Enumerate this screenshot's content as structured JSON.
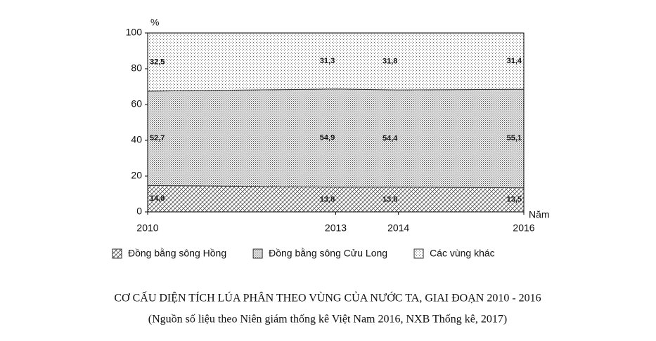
{
  "chart_data": {
    "type": "stacked-area",
    "title": "CƠ CẤU DIỆN TÍCH LÚA PHÂN THEO VÙNG CỦA NƯỚC TA, GIAI ĐOẠN 2010 - 2016",
    "subtitle": "(Nguồn số liệu theo Niên giám thống kê Việt Nam 2016, NXB Thống kê, 2017)",
    "y_label": "%",
    "x_label": "Năm",
    "x": [
      2010,
      2013,
      2014,
      2016
    ],
    "xlim": [
      2010,
      2016
    ],
    "xticks": [
      2010,
      2013,
      2014,
      2016
    ],
    "ylim": [
      0,
      100
    ],
    "yticks": [
      0,
      20,
      40,
      60,
      80,
      100
    ],
    "series": [
      {
        "name": "Đồng bằng sông Hồng",
        "pattern": "hatch",
        "color": "#333333",
        "values": [
          14.8,
          13.8,
          13.8,
          13.5
        ],
        "value_labels": [
          "14,8",
          "13,8",
          "13,8",
          "13,5"
        ]
      },
      {
        "name": "Đồng bằng sông Cửu Long",
        "pattern": "dense-dots",
        "color": "#333333",
        "values": [
          52.7,
          54.9,
          54.4,
          55.1
        ],
        "value_labels": [
          "52,7",
          "54,9",
          "54,4",
          "55,1"
        ]
      },
      {
        "name": "Các vùng khác",
        "pattern": "sparse-dots",
        "color": "#333333",
        "values": [
          32.5,
          31.3,
          31.8,
          31.4
        ],
        "value_labels": [
          "32,5",
          "31,3",
          "31,8",
          "31,4"
        ]
      }
    ]
  }
}
